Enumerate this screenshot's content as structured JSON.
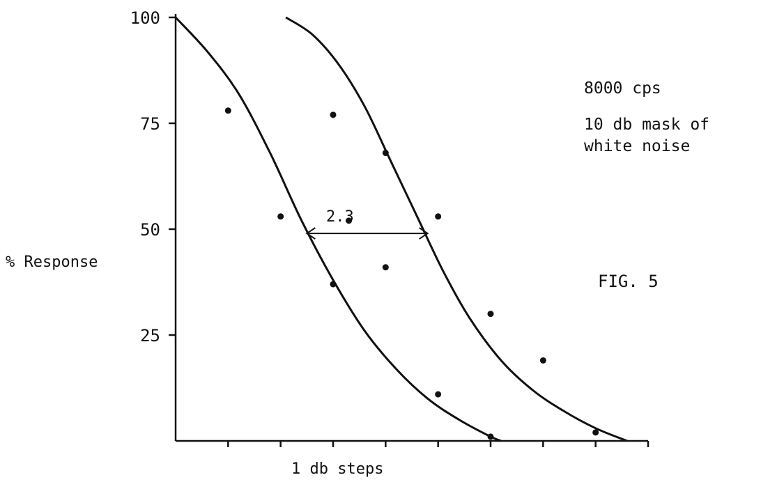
{
  "chart_data": {
    "type": "line",
    "title": "",
    "xlabel": "1 db steps",
    "ylabel": "% Response",
    "ylim": [
      0,
      100
    ],
    "xlim": [
      0,
      9
    ],
    "y_ticks": [
      100,
      75,
      50,
      25
    ],
    "x_ticks": [
      1,
      2,
      3,
      4,
      5,
      6,
      7,
      8,
      9
    ],
    "grid": false,
    "notes": [
      "8000 cps",
      "10 db mask of",
      "white noise"
    ],
    "figure_label": "FIG. 5",
    "annotation": {
      "text": "2.3",
      "x_start": 2.5,
      "x_end": 4.8,
      "y": 49
    },
    "series": [
      {
        "points": [
          [
            1,
            78
          ],
          [
            2,
            53
          ],
          [
            3,
            37
          ],
          [
            5,
            11
          ],
          [
            6,
            1
          ]
        ],
        "curve": [
          [
            0,
            100
          ],
          [
            0.6,
            92
          ],
          [
            1.2,
            82
          ],
          [
            1.8,
            68
          ],
          [
            2.4,
            52
          ],
          [
            3.0,
            38
          ],
          [
            3.6,
            26
          ],
          [
            4.2,
            17
          ],
          [
            4.8,
            10
          ],
          [
            5.4,
            5
          ],
          [
            6.0,
            1
          ],
          [
            6.2,
            0
          ]
        ]
      },
      {
        "points": [
          [
            3,
            77
          ],
          [
            3.3,
            52
          ],
          [
            4,
            68
          ],
          [
            4,
            41
          ],
          [
            5,
            53
          ],
          [
            6,
            30
          ],
          [
            7,
            19
          ],
          [
            8,
            2
          ]
        ],
        "curve": [
          [
            2.1,
            100
          ],
          [
            2.6,
            96
          ],
          [
            3.1,
            89
          ],
          [
            3.6,
            79
          ],
          [
            4.1,
            66
          ],
          [
            4.6,
            53
          ],
          [
            5.1,
            40
          ],
          [
            5.6,
            29
          ],
          [
            6.2,
            19
          ],
          [
            6.8,
            12
          ],
          [
            7.4,
            7
          ],
          [
            8.0,
            3
          ],
          [
            8.6,
            0
          ]
        ]
      }
    ]
  }
}
